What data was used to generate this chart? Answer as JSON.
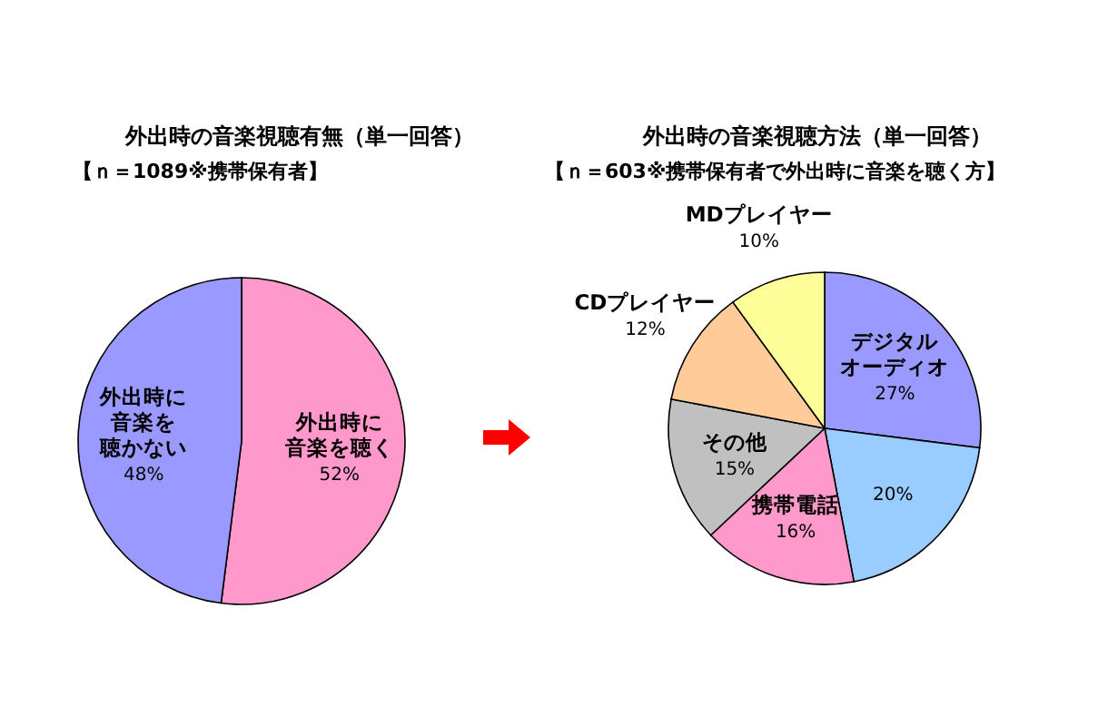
{
  "chart_data": [
    {
      "type": "pie",
      "title": "外出時の音楽視聴有無（単一回答）",
      "subtitle": "【ｎ＝1089※携帯保有者】",
      "categories": [
        "外出時に音楽を聴く",
        "外出時に音楽を聴かない"
      ],
      "values": [
        52,
        48
      ],
      "value_labels": [
        "52%",
        "48%"
      ],
      "colors": [
        "#ff99cc",
        "#9999ff"
      ]
    },
    {
      "type": "pie",
      "title": "外出時の音楽視聴方法（単一回答）",
      "subtitle": "【ｎ＝603※携帯保有者で外出時に音楽を聴く方】",
      "categories": [
        "デジタルオーディオ",
        null,
        "携帯電話",
        "その他",
        "CDプレイヤー",
        "MDプレイヤー"
      ],
      "values": [
        27,
        20,
        16,
        15,
        12,
        10
      ],
      "value_labels": [
        "27%",
        "20%",
        "16%",
        "15%",
        "12%",
        "10%"
      ],
      "colors": [
        "#9999ff",
        "#99ccff",
        "#ff99cc",
        "#c0c0c0",
        "#ffcc99",
        "#ffff99"
      ]
    }
  ]
}
